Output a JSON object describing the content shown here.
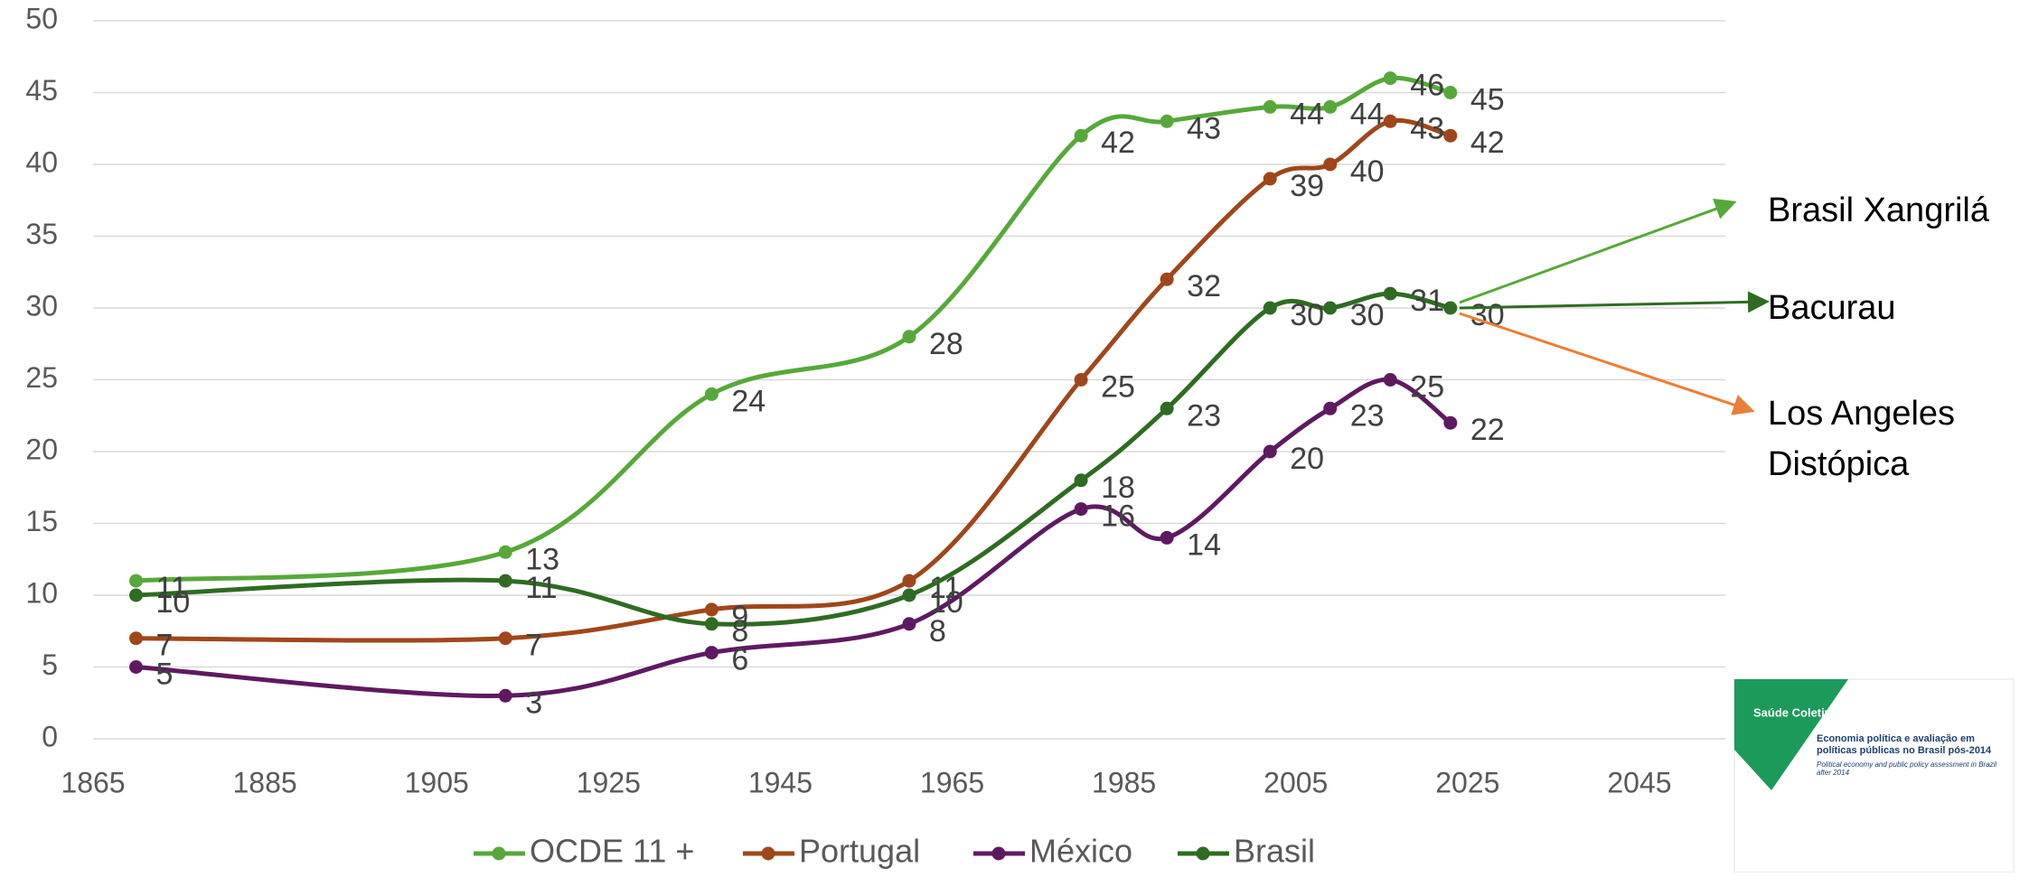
{
  "chart_data": {
    "type": "line",
    "x": [
      1870,
      1913,
      1937,
      1960,
      1980,
      1990,
      2002,
      2009,
      2016,
      2023
    ],
    "series": [
      {
        "name": "OCDE 11 +",
        "color": "#57a83a",
        "values": [
          11,
          13,
          24,
          28,
          42,
          43,
          44,
          44,
          46,
          45
        ]
      },
      {
        "name": "Portugal",
        "color": "#a0461b",
        "values": [
          7,
          7,
          9,
          11,
          25,
          32,
          39,
          40,
          43,
          42
        ]
      },
      {
        "name": "México",
        "color": "#5e1a60",
        "values": [
          5,
          3,
          6,
          8,
          16,
          14,
          20,
          23,
          25,
          22
        ]
      },
      {
        "name": "Brasil",
        "color": "#2f6b23",
        "values": [
          10,
          11,
          8,
          10,
          18,
          23,
          30,
          30,
          31,
          30
        ]
      }
    ],
    "xlim": [
      1865,
      2055
    ],
    "xticks": [
      1865,
      1885,
      1905,
      1925,
      1945,
      1965,
      1985,
      2005,
      2025,
      2045
    ],
    "ylim": [
      0,
      50
    ],
    "yticks": [
      0,
      5,
      10,
      15,
      20,
      25,
      30,
      35,
      40,
      45,
      50
    ],
    "grid": true,
    "legend": "bottom",
    "annotations": [
      {
        "text": "Brasil Xangrilá",
        "color": "#57a83a"
      },
      {
        "text": "Bacurau",
        "color": "#2f6b23"
      },
      {
        "text": "Los Angeles\nDistópica",
        "color": "#e8803a"
      }
    ]
  },
  "thumbnail": {
    "journal": "Saúde Coletiva",
    "title": "Economia política e avaliação em políticas públicas no Brasil pós-2014",
    "subtitle": "Political economy and public policy assessment in Brazil after 2014"
  }
}
